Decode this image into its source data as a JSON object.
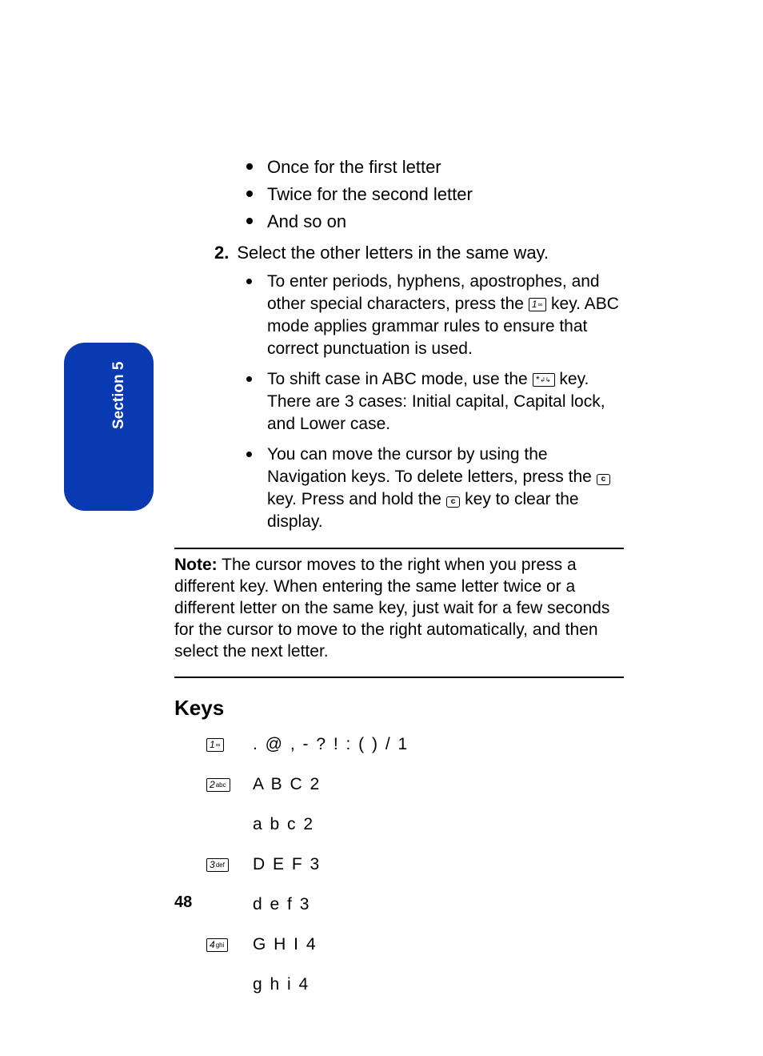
{
  "tab_label": "Section 5",
  "top_bullets": [
    "Once for the first letter",
    "Twice for the second letter",
    "And so on"
  ],
  "step": {
    "number": "2.",
    "text": "Select the other letters in the same way."
  },
  "sub_bullets": {
    "b1": {
      "pre": "To enter periods, hyphens, apostrophes, and other special characters, press the ",
      "key": {
        "digit": "1",
        "sub": "∞"
      },
      "post": " key. ABC mode applies grammar rules to ensure that correct punctuation is used."
    },
    "b2": {
      "pre": "To shift case in ABC mode, use the ",
      "key": {
        "digit": "*",
        "sub": "↲↳"
      },
      "post": " key. There are 3 cases: Initial capital, Capital lock, and Lower case."
    },
    "b3": {
      "pre": "You can move the cursor by using the Navigation keys. To delete letters, press the ",
      "key1": "c",
      "mid": " key. Press and hold the ",
      "key2": "c",
      "post": " key to clear the display."
    }
  },
  "note": {
    "label": "Note:",
    "text": " The cursor moves to the right when you press a different key. When entering the same letter twice or a different letter on the same key, just wait for a few seconds for the cursor to move to the right automatically, and then select the next letter."
  },
  "keys": {
    "heading": "Keys",
    "rows": [
      {
        "icon": {
          "digit": "1",
          "sub": "∞"
        },
        "chars": ". @ , - ? ! : ( ) / 1"
      },
      {
        "icon": {
          "digit": "2",
          "sub": "abc"
        },
        "chars": "A B C 2"
      },
      {
        "icon": null,
        "chars": "a b c 2"
      },
      {
        "icon": {
          "digit": "3",
          "sub": "def"
        },
        "chars": "D E F 3"
      },
      {
        "icon": null,
        "chars": "d e f 3"
      },
      {
        "icon": {
          "digit": "4",
          "sub": "ghi"
        },
        "chars": "G H I 4"
      },
      {
        "icon": null,
        "chars": "g h i 4"
      }
    ]
  },
  "page_number": "48"
}
